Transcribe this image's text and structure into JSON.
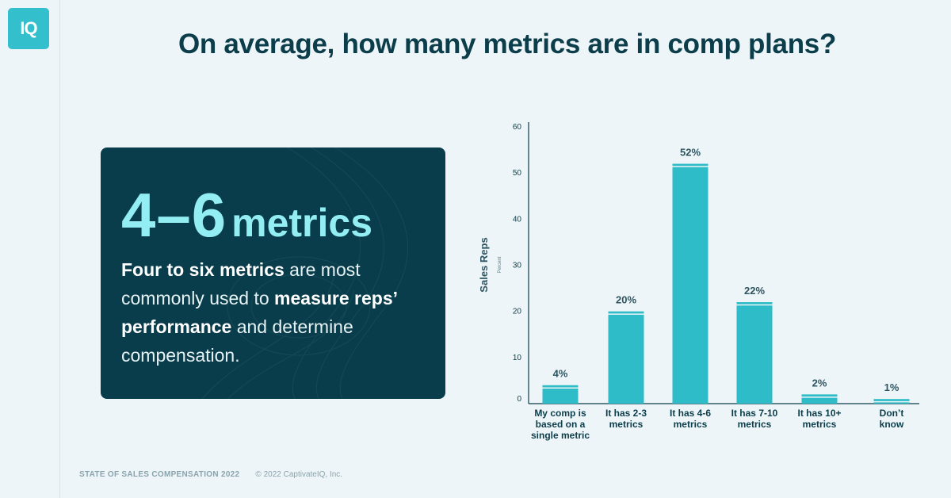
{
  "logo": {
    "text": "IQ"
  },
  "title": "On average, how many metrics are in comp plans?",
  "card": {
    "headline_number": "4–6",
    "headline_unit": "metrics",
    "desc_bold1": "Four to six metrics",
    "desc_text1": " are most commonly used to ",
    "desc_bold2": "measure reps’ performance",
    "desc_text2": " and determine compensation."
  },
  "footer": {
    "brand": "STATE OF SALES COMPENSATION 2022",
    "copyright": "© 2022 CaptivateIQ, Inc."
  },
  "colors": {
    "bar": "#2fbcc9",
    "accent": "#93eef4",
    "card_bg": "#0a3d4b",
    "page_bg": "#eef5f8"
  },
  "chart_data": {
    "type": "bar",
    "categories": [
      [
        "My comp is",
        "based on a",
        "single metric"
      ],
      [
        "It has 2-3",
        "metrics"
      ],
      [
        "It has 4-6",
        "metrics"
      ],
      [
        "It has 7-10",
        "metrics"
      ],
      [
        "It has 10+",
        "metrics"
      ],
      [
        "Don’t",
        "know"
      ]
    ],
    "values": [
      4,
      20,
      52,
      22,
      2,
      1
    ],
    "value_labels": [
      "4%",
      "20%",
      "52%",
      "22%",
      "2%",
      "1%"
    ],
    "ylabel": "Sales Reps",
    "ylabel_sub": "Percent",
    "ylim": [
      0,
      60
    ],
    "yticks": [
      0,
      10,
      20,
      30,
      40,
      50,
      60
    ],
    "grid": false
  }
}
